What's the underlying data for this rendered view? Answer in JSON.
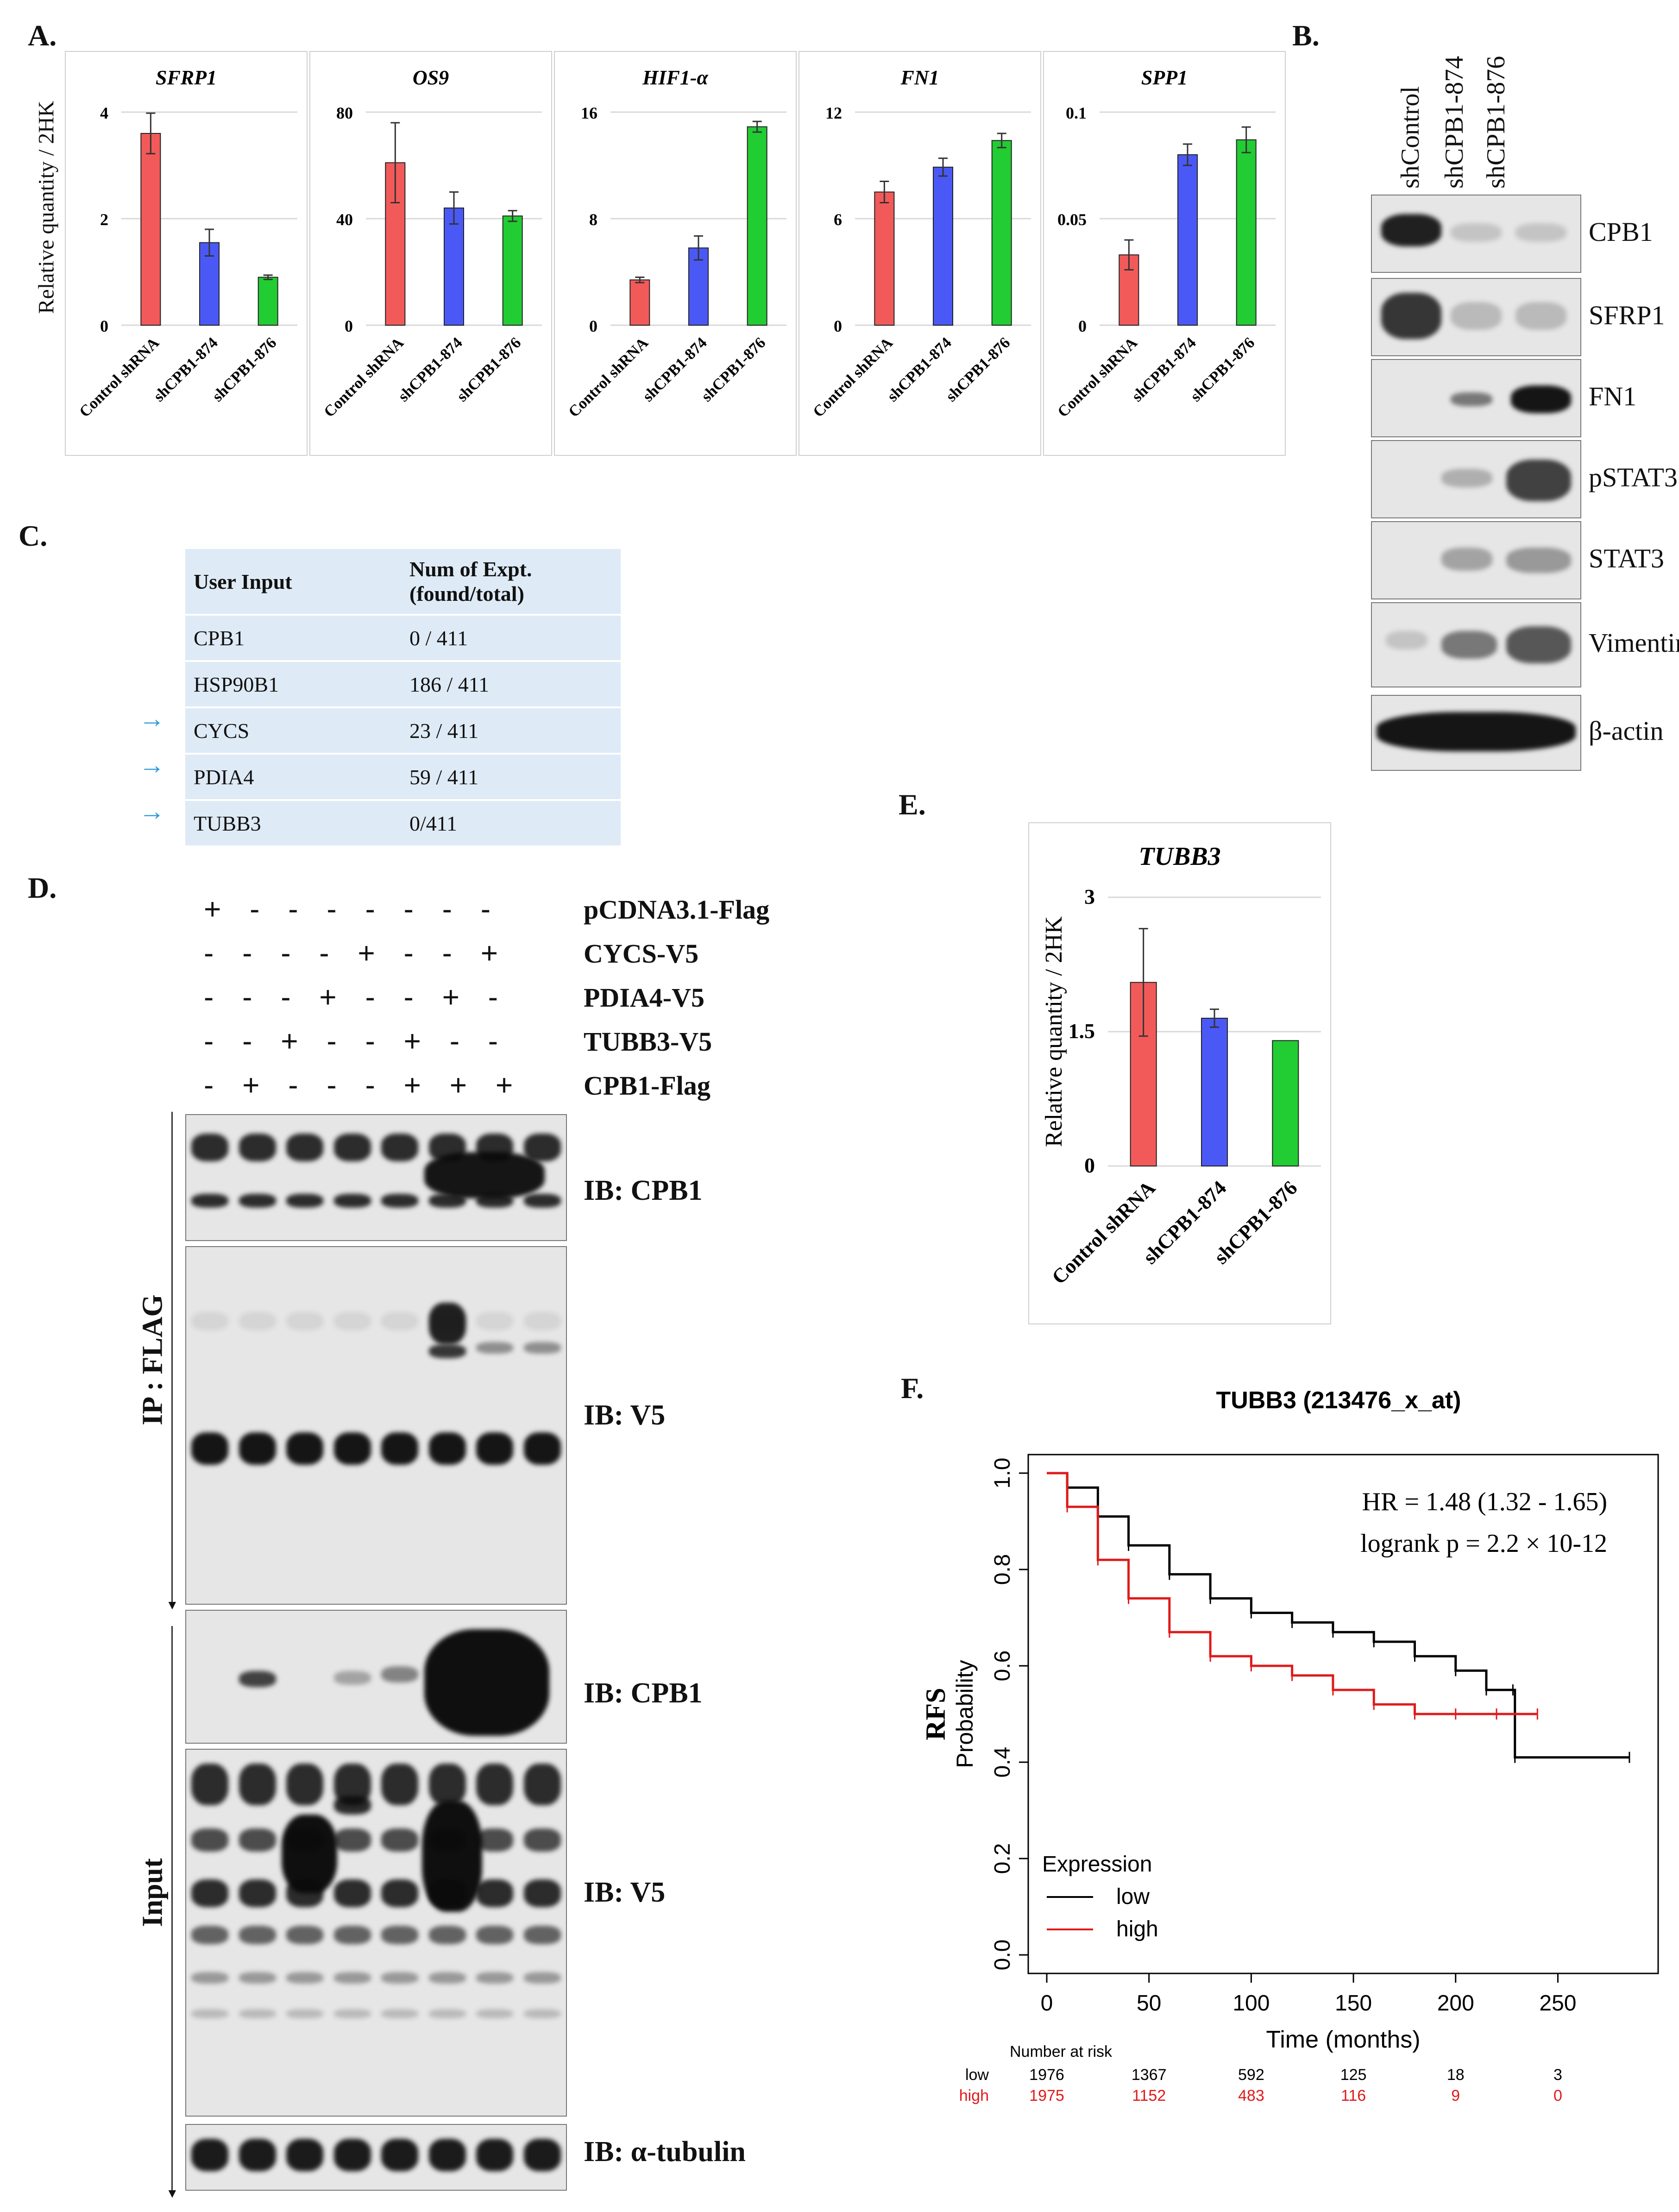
{
  "panels": {
    "A": "A.",
    "B": "B.",
    "C": "C.",
    "D": "D.",
    "E": "E.",
    "F": "F."
  },
  "panel_a": {
    "ylabel": "Relative quantity / 2HK",
    "categories": [
      "Control shRNA",
      "shCPB1-874",
      "shCPB1-876"
    ],
    "colors": [
      "#f25a5a",
      "#4a59f5",
      "#22cc33"
    ]
  },
  "panel_b": {
    "lanes": [
      "shControl",
      "shCPB1-874",
      "shCPB1-876"
    ],
    "rows": [
      "CPB1",
      "SFRP1",
      "FN1",
      "pSTAT3",
      "STAT3",
      "Vimentin",
      "β-actin"
    ]
  },
  "panel_c": {
    "headers": [
      "User Input",
      "Num of Expt.",
      "(found/total)"
    ],
    "rows": [
      {
        "gene": "CPB1",
        "value": "0 / 411",
        "arrow": ""
      },
      {
        "gene": "HSP90B1",
        "value": "186 / 411",
        "arrow": ""
      },
      {
        "gene": "CYCS",
        "value": "23 / 411",
        "arrow": "→"
      },
      {
        "gene": "PDIA4",
        "value": "59 / 411",
        "arrow": "→"
      },
      {
        "gene": "TUBB3",
        "value": "0/411",
        "arrow": "→"
      }
    ]
  },
  "panel_d": {
    "constructs": [
      {
        "label": "pCDNA3.1-Flag",
        "signs": "+ - - - - - - -"
      },
      {
        "label": "CYCS-V5",
        "signs": "- - - - + - - +"
      },
      {
        "label": "PDIA4-V5",
        "signs": "- - - + - - + -"
      },
      {
        "label": "TUBB3-V5",
        "signs": "- - + - - + - -"
      },
      {
        "label": "CPB1-Flag",
        "signs": "- + - - - + + +"
      }
    ],
    "ib_labels": [
      "IB: CPB1",
      "IB: V5",
      "IB: CPB1",
      "IB: V5",
      "IB: α-tubulin"
    ],
    "side_ip": "IP : FLAG",
    "side_input": "Input"
  },
  "chart_data": [
    {
      "type": "bar",
      "title": "SFRP1",
      "ylabel": "Relative quantity / 2HK",
      "categories": [
        "Control shRNA",
        "shCPB1-874",
        "shCPB1-876"
      ],
      "values": [
        3.6,
        1.55,
        0.9
      ],
      "errors": [
        0.38,
        0.25,
        0.04
      ],
      "ylim": [
        0,
        4
      ],
      "yticks": [
        "0",
        "2",
        "4"
      ]
    },
    {
      "type": "bar",
      "title": "OS9",
      "categories": [
        "Control shRNA",
        "shCPB1-874",
        "shCPB1-876"
      ],
      "values": [
        61,
        44,
        41
      ],
      "errors": [
        15,
        6,
        2
      ],
      "ylim": [
        0,
        80
      ],
      "yticks": [
        "0",
        "40",
        "80"
      ]
    },
    {
      "type": "bar",
      "title": "HIF1-α",
      "categories": [
        "Control shRNA",
        "shCPB1-874",
        "shCPB1-876"
      ],
      "values": [
        3.4,
        5.8,
        14.9
      ],
      "errors": [
        0.2,
        0.9,
        0.4
      ],
      "ylim": [
        0,
        16
      ],
      "yticks": [
        "0",
        "8",
        "16"
      ]
    },
    {
      "type": "bar",
      "title": "FN1",
      "categories": [
        "Control shRNA",
        "shCPB1-874",
        "shCPB1-876"
      ],
      "values": [
        7.5,
        8.9,
        10.4
      ],
      "errors": [
        0.6,
        0.5,
        0.4
      ],
      "ylim": [
        0,
        12
      ],
      "yticks": [
        "0",
        "6",
        "12"
      ]
    },
    {
      "type": "bar",
      "title": "SPP1",
      "categories": [
        "Control shRNA",
        "shCPB1-874",
        "shCPB1-876"
      ],
      "values": [
        0.033,
        0.08,
        0.087
      ],
      "errors": [
        0.007,
        0.005,
        0.006
      ],
      "ylim": [
        0,
        0.1
      ],
      "yticks": [
        "0",
        "0.05",
        "0.1"
      ]
    },
    {
      "type": "bar",
      "title": "TUBB3",
      "ylabel": "Relative quantity / 2HK",
      "categories": [
        "Control shRNA",
        "shCPB1-874",
        "shCPB1-876"
      ],
      "values": [
        2.05,
        1.65,
        1.4
      ],
      "errors": [
        0.6,
        0.1,
        0.0
      ],
      "ylim": [
        0,
        3
      ],
      "yticks": [
        "0",
        "1.5",
        "3"
      ]
    },
    {
      "type": "line",
      "title": "TUBB3 (213476_x_at)",
      "xlabel": "Time (months)",
      "ylabel_main": "RFS",
      "ylabel_sub": "Probability",
      "xlim": [
        0,
        290
      ],
      "ylim": [
        0,
        1
      ],
      "xticks": [
        "0",
        "50",
        "100",
        "150",
        "200",
        "250"
      ],
      "yticks": [
        "0.0",
        "0.2",
        "0.4",
        "0.6",
        "0.8",
        "1.0"
      ],
      "hr_text": "HR = 1.48 (1.32 - 1.65)",
      "logrank_text": "logrank p = 2.2 × 10-12",
      "legend_title": "Expression",
      "series": [
        {
          "name": "low",
          "color": "#000000",
          "x": [
            0,
            10,
            25,
            40,
            60,
            80,
            100,
            120,
            140,
            160,
            180,
            200,
            215,
            228,
            229,
            285
          ],
          "y": [
            1.0,
            0.97,
            0.91,
            0.85,
            0.79,
            0.74,
            0.71,
            0.69,
            0.67,
            0.65,
            0.62,
            0.59,
            0.55,
            0.55,
            0.41,
            0.41
          ]
        },
        {
          "name": "high",
          "color": "#e01a1a",
          "x": [
            0,
            10,
            25,
            40,
            60,
            80,
            100,
            120,
            140,
            160,
            180,
            200,
            220,
            240
          ],
          "y": [
            1.0,
            0.93,
            0.82,
            0.74,
            0.67,
            0.62,
            0.6,
            0.58,
            0.55,
            0.52,
            0.5,
            0.5,
            0.5,
            0.5
          ]
        }
      ],
      "risk_table": {
        "title": "Number at risk",
        "low": [
          "1976",
          "1367",
          "592",
          "125",
          "18",
          "3"
        ],
        "high": [
          "1975",
          "1152",
          "483",
          "116",
          "9",
          "0"
        ]
      }
    }
  ]
}
